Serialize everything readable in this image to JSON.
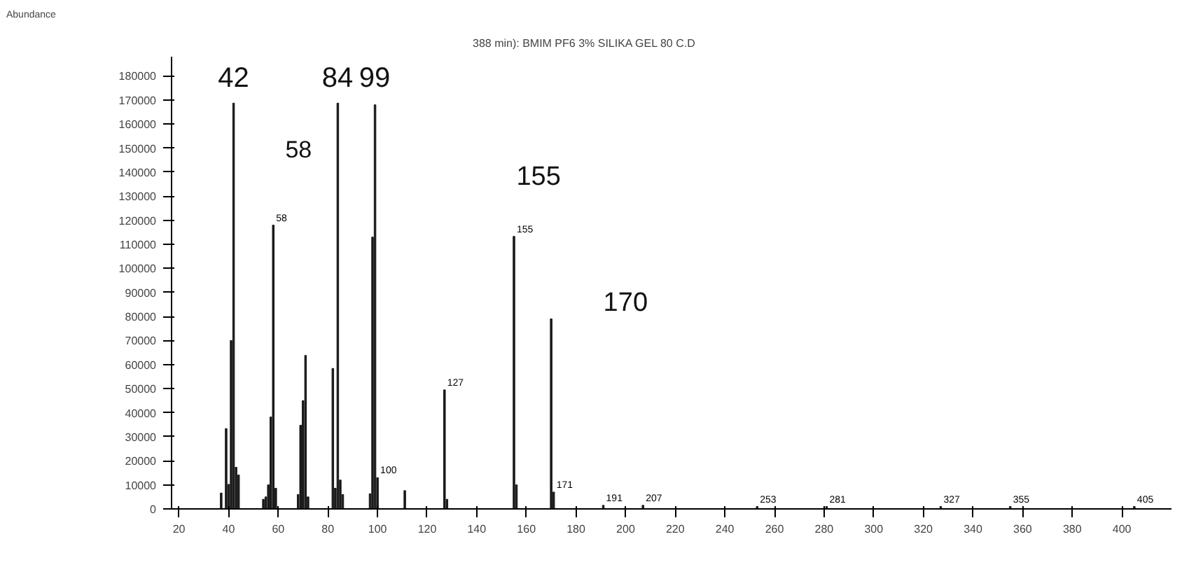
{
  "chart_data": {
    "type": "bar",
    "title": "388 min): BMIM PF6 3% SILIKA GEL 80 C.D",
    "x": [
      37,
      39,
      40,
      41,
      42,
      43,
      44,
      54,
      55,
      56,
      57,
      58,
      59,
      68,
      69,
      70,
      71,
      72,
      82,
      83,
      84,
      85,
      86,
      97,
      98,
      99,
      100,
      111,
      127,
      128,
      155,
      156,
      170,
      171,
      191,
      207,
      253,
      281,
      327,
      355,
      405
    ],
    "values": [
      6600,
      33400,
      10200,
      70000,
      168700,
      17300,
      14100,
      4000,
      5000,
      10000,
      38200,
      118000,
      8600,
      6000,
      34800,
      45000,
      63800,
      5000,
      58400,
      8600,
      168700,
      12000,
      6000,
      6300,
      113000,
      168000,
      13000,
      7600,
      49500,
      4000,
      113300,
      10000,
      79000,
      7000,
      1500,
      1500,
      1000,
      1000,
      1000,
      1000,
      1000
    ],
    "color": "#1a1a1a",
    "xlim": [
      17,
      420
    ],
    "xticks": [
      20,
      40,
      60,
      80,
      100,
      120,
      140,
      160,
      180,
      200,
      220,
      240,
      260,
      280,
      300,
      320,
      340,
      360,
      380,
      400
    ],
    "ylim": [
      0,
      188000
    ],
    "yticks": [
      0,
      10000,
      20000,
      30000,
      40000,
      50000,
      60000,
      70000,
      80000,
      90000,
      100000,
      110000,
      120000,
      130000,
      140000,
      150000,
      160000,
      170000,
      180000
    ],
    "grid": false,
    "annotations": [
      "Abundance",
      "42",
      "84",
      "99",
      "58",
      "155",
      "170",
      {
        "text": "58",
        "x": 58,
        "y": 118000
      },
      {
        "text": "100",
        "x": 100,
        "y": 13000
      },
      {
        "text": "127",
        "x": 127,
        "y": 49500
      },
      {
        "text": "155",
        "x": 155,
        "y": 113300
      },
      {
        "text": "171",
        "x": 171,
        "y": 7000
      },
      {
        "text": "191",
        "x": 191,
        "y": 1500
      },
      {
        "text": "207",
        "x": 207,
        "y": 1500
      },
      {
        "text": "253",
        "x": 253,
        "y": 1000
      },
      {
        "text": "281",
        "x": 281,
        "y": 1000
      },
      {
        "text": "327",
        "x": 327,
        "y": 1000
      },
      {
        "text": "355",
        "x": 355,
        "y": 1000
      },
      {
        "text": "405",
        "x": 405,
        "y": 1000
      }
    ]
  }
}
